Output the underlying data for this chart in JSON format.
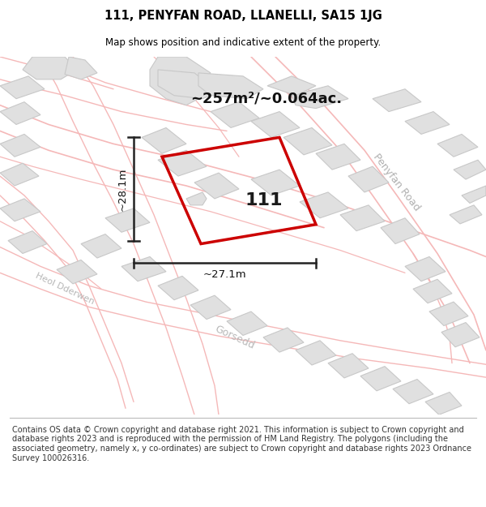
{
  "title": "111, PENYFAN ROAD, LLANELLI, SA15 1JG",
  "subtitle": "Map shows position and indicative extent of the property.",
  "footer": "Contains OS data © Crown copyright and database right 2021. This information is subject to Crown copyright and database rights 2023 and is reproduced with the permission of HM Land Registry. The polygons (including the associated geometry, namely x, y co-ordinates) are subject to Crown copyright and database rights 2023 Ordnance Survey 100026316.",
  "area_label": "~257m²/~0.064ac.",
  "property_number": "111",
  "width_label": "~27.1m",
  "height_label": "~28.1m",
  "bg_color": "#ffffff",
  "road_color": "#f5b8b8",
  "road_fill": "#ffffff",
  "building_color": "#e0e0e0",
  "building_edge": "#c8c8c8",
  "property_fill": "none",
  "property_edge": "#cc0000",
  "dim_line_color": "#222222",
  "road_label_color": "#b0b0b0",
  "title_fontsize": 10.5,
  "subtitle_fontsize": 8.5,
  "footer_fontsize": 7.0
}
